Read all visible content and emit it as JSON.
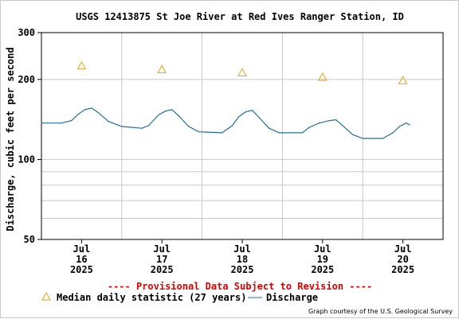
{
  "chart_data": {
    "type": "line",
    "title": "USGS 12413875 St Joe River at Red Ives Ranger Station, ID",
    "ylabel": "Discharge, cubic feet per second",
    "y_scale": "log",
    "ylim": [
      50,
      300
    ],
    "y_ticks": [
      50,
      100,
      200,
      300
    ],
    "xlim": [
      "2025-07-15 12:00",
      "2025-07-20 12:00"
    ],
    "x_ticks": [
      {
        "month": "Jul",
        "day": "16",
        "year": "2025",
        "at": "2025-07-16 00:00"
      },
      {
        "month": "Jul",
        "day": "17",
        "year": "2025",
        "at": "2025-07-17 00:00"
      },
      {
        "month": "Jul",
        "day": "18",
        "year": "2025",
        "at": "2025-07-18 00:00"
      },
      {
        "month": "Jul",
        "day": "19",
        "year": "2025",
        "at": "2025-07-19 00:00"
      },
      {
        "month": "Jul",
        "day": "20",
        "year": "2025",
        "at": "2025-07-20 00:00"
      }
    ],
    "grid": true,
    "series": [
      {
        "name": "Discharge",
        "color": "#1f6f9c",
        "points": [
          {
            "x": "2025-07-15 12:00",
            "y": 137
          },
          {
            "x": "2025-07-15 18:00",
            "y": 137
          },
          {
            "x": "2025-07-15 21:00",
            "y": 140
          },
          {
            "x": "2025-07-15 23:00",
            "y": 148
          },
          {
            "x": "2025-07-16 01:00",
            "y": 154
          },
          {
            "x": "2025-07-16 03:00",
            "y": 156
          },
          {
            "x": "2025-07-16 05:00",
            "y": 150
          },
          {
            "x": "2025-07-16 08:00",
            "y": 139
          },
          {
            "x": "2025-07-16 12:00",
            "y": 133
          },
          {
            "x": "2025-07-16 18:00",
            "y": 131
          },
          {
            "x": "2025-07-16 20:00",
            "y": 134
          },
          {
            "x": "2025-07-16 23:00",
            "y": 147
          },
          {
            "x": "2025-07-17 01:00",
            "y": 152
          },
          {
            "x": "2025-07-17 03:00",
            "y": 154
          },
          {
            "x": "2025-07-17 05:00",
            "y": 146
          },
          {
            "x": "2025-07-17 08:00",
            "y": 133
          },
          {
            "x": "2025-07-17 11:00",
            "y": 127
          },
          {
            "x": "2025-07-17 18:00",
            "y": 126
          },
          {
            "x": "2025-07-17 21:00",
            "y": 134
          },
          {
            "x": "2025-07-17 23:00",
            "y": 145
          },
          {
            "x": "2025-07-18 01:00",
            "y": 151
          },
          {
            "x": "2025-07-18 03:00",
            "y": 153
          },
          {
            "x": "2025-07-18 05:00",
            "y": 144
          },
          {
            "x": "2025-07-18 08:00",
            "y": 131
          },
          {
            "x": "2025-07-18 11:00",
            "y": 126
          },
          {
            "x": "2025-07-18 18:00",
            "y": 126
          },
          {
            "x": "2025-07-18 20:00",
            "y": 132
          },
          {
            "x": "2025-07-18 23:00",
            "y": 137
          },
          {
            "x": "2025-07-19 02:00",
            "y": 140
          },
          {
            "x": "2025-07-19 04:00",
            "y": 141
          },
          {
            "x": "2025-07-19 06:00",
            "y": 134
          },
          {
            "x": "2025-07-19 09:00",
            "y": 124
          },
          {
            "x": "2025-07-19 12:00",
            "y": 120
          },
          {
            "x": "2025-07-19 18:00",
            "y": 120
          },
          {
            "x": "2025-07-19 21:00",
            "y": 126
          },
          {
            "x": "2025-07-19 23:00",
            "y": 133
          },
          {
            "x": "2025-07-20 01:00",
            "y": 137
          },
          {
            "x": "2025-07-20 02:00",
            "y": 135
          }
        ]
      },
      {
        "name": "Median daily statistic (27 years)",
        "color": "#e3a21a",
        "marker": "triangle",
        "points": [
          {
            "x": "2025-07-16 00:00",
            "y": 225
          },
          {
            "x": "2025-07-17 00:00",
            "y": 218
          },
          {
            "x": "2025-07-18 00:00",
            "y": 212
          },
          {
            "x": "2025-07-19 00:00",
            "y": 204
          },
          {
            "x": "2025-07-20 00:00",
            "y": 198
          }
        ]
      }
    ],
    "provisional_note": "---- Provisional Data Subject to Revision ----",
    "legend": {
      "placement": "bottom-left",
      "median_label": "Median daily statistic (27 years)",
      "discharge_label": "Discharge"
    },
    "credit": "Graph courtesy of the U.S. Geological Survey"
  },
  "colors": {
    "discharge_line": "#1f6f9c",
    "median_marker": "#e3a21a",
    "provisional_text": "#e00000",
    "grid": "#c8c8c8",
    "axis": "#000000"
  }
}
